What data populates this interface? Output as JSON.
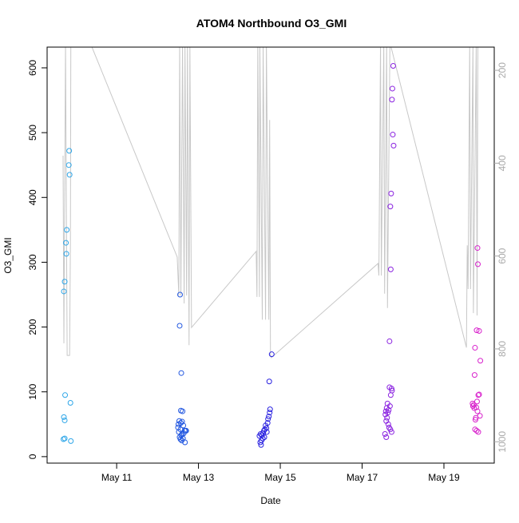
{
  "chart_data": {
    "type": "scatter",
    "title": "ATOM4 Northbound O3_GMI",
    "xlabel": "Date",
    "ylabel": "O3_GMI",
    "xlim": [
      9.3,
      20.23
    ],
    "ylim": [
      -10,
      632
    ],
    "y2lim": [
      1046,
      150
    ],
    "xticks": [
      {
        "value": 11,
        "label": "May 11"
      },
      {
        "value": 13,
        "label": "May 13"
      },
      {
        "value": 15,
        "label": "May 15"
      },
      {
        "value": 17,
        "label": "May 17"
      },
      {
        "value": 19,
        "label": "May 19"
      }
    ],
    "yticks": [
      0,
      100,
      200,
      300,
      400,
      500,
      600
    ],
    "y2ticks": [
      200,
      400,
      600,
      800,
      1000
    ],
    "series": [
      {
        "color": "#2ea6e8",
        "x": [
          9.71,
          9.73,
          9.77,
          9.76,
          9.78,
          9.83,
          9.84,
          9.85,
          9.74,
          9.87,
          9.71,
          9.73,
          9.7,
          9.73,
          9.88
        ],
        "values": [
          255,
          270,
          313,
          330,
          350,
          450,
          472,
          435,
          95,
          83,
          61,
          56,
          27,
          28,
          24
        ]
      },
      {
        "color": "#2257e0",
        "x": [
          12.55,
          12.54,
          12.58,
          12.57,
          12.61,
          12.53,
          12.6,
          12.57,
          12.51,
          12.63,
          12.5,
          12.56,
          12.66,
          12.7,
          12.68,
          12.52,
          12.64,
          12.6,
          12.58,
          12.54,
          12.62,
          12.56,
          12.59,
          12.67
        ],
        "values": [
          250,
          202,
          129,
          71,
          70,
          55,
          54,
          52,
          50,
          48,
          45,
          42,
          40,
          40,
          40,
          38,
          36,
          35,
          33,
          30,
          28,
          27,
          25,
          22
        ]
      },
      {
        "color": "#2a22e0",
        "x": [
          14.79,
          14.73,
          14.75,
          14.74,
          14.72,
          14.7,
          14.69,
          14.64,
          14.66,
          14.62,
          14.6,
          14.67,
          14.58,
          14.52,
          14.55,
          14.49,
          14.61,
          14.57,
          14.54,
          14.51,
          14.53
        ],
        "values": [
          158,
          116,
          73,
          68,
          62,
          58,
          52,
          48,
          44,
          42,
          40,
          38,
          36,
          35,
          33,
          32,
          30,
          28,
          25,
          22,
          18
        ]
      },
      {
        "color": "#8a22e0",
        "x": [
          17.76,
          17.74,
          17.73,
          17.75,
          17.77,
          17.71,
          17.69,
          17.7,
          17.67,
          17.67,
          17.72,
          17.73,
          17.7,
          17.62,
          17.68,
          17.6,
          17.65,
          17.58,
          17.63,
          17.57,
          17.61,
          17.59,
          17.64,
          17.66,
          17.69,
          17.72,
          17.56,
          17.59
        ],
        "values": [
          603,
          568,
          551,
          497,
          480,
          406,
          386,
          289,
          178,
          107,
          105,
          102,
          95,
          82,
          78,
          75,
          72,
          70,
          68,
          65,
          60,
          55,
          50,
          45,
          42,
          38,
          35,
          30
        ]
      },
      {
        "color": "#d822cc",
        "x": [
          19.82,
          19.83,
          19.8,
          19.86,
          19.76,
          19.89,
          19.75,
          19.86,
          19.84,
          19.81,
          19.7,
          19.73,
          19.71,
          19.79,
          19.74,
          19.82,
          19.88,
          19.78,
          19.77,
          19.76,
          19.8,
          19.84
        ],
        "values": [
          322,
          297,
          195,
          194,
          168,
          148,
          126,
          96,
          95,
          85,
          82,
          80,
          78,
          76,
          75,
          70,
          63,
          60,
          57,
          42,
          40,
          38
        ]
      },
      {
        "type": "line",
        "axis": "y2",
        "color": "#c8c8c8",
        "x": [
          9.69,
          9.71,
          9.75,
          9.79,
          9.85,
          9.87,
          9.88,
          10.1,
          10.35,
          12.48,
          12.52,
          12.54,
          12.57,
          12.61,
          12.65,
          12.67,
          12.71,
          12.73,
          12.77,
          12.79,
          12.83,
          14.41,
          14.43,
          14.45,
          14.49,
          14.5,
          14.56,
          14.58,
          14.64,
          14.66,
          14.72,
          14.74,
          14.76,
          14.78,
          17.39,
          17.41,
          17.45,
          17.47,
          17.53,
          17.55,
          17.6,
          17.62,
          17.68,
          19.55,
          19.57,
          19.59,
          19.63,
          19.65,
          19.71,
          19.72,
          19.79,
          19.81,
          19.83
        ],
        "values": [
          384,
          788,
          140,
          814,
          814,
          565,
          140,
          120,
          140,
          602,
          685,
          140,
          685,
          140,
          702,
          140,
          685,
          140,
          792,
          140,
          754,
          590,
          688,
          140,
          688,
          140,
          737,
          140,
          737,
          140,
          737,
          307,
          814,
          819,
          616,
          642,
          140,
          642,
          140,
          681,
          140,
          712,
          140,
          797,
          577,
          671,
          140,
          671,
          140,
          723,
          140,
          728,
          140
        ]
      }
    ]
  }
}
